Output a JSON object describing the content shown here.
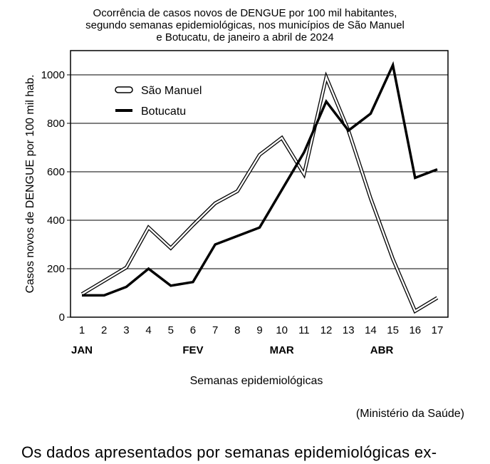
{
  "chart_data": {
    "type": "line",
    "title_lines": [
      "Ocorrência de casos novos de DENGUE por 100 mil habitantes,",
      "segundo semanas epidemiológicas, nos municípios de São Manuel",
      "e Botucatu, de janeiro a abril de 2024"
    ],
    "xlabel": "Semanas epidemiológicas",
    "ylabel": "Casos novos de DENGUE por 100 mil hab.",
    "x": [
      1,
      2,
      3,
      4,
      5,
      6,
      7,
      8,
      9,
      10,
      11,
      12,
      13,
      14,
      15,
      16,
      17
    ],
    "month_labels": [
      {
        "label": "JAN",
        "week": 1
      },
      {
        "label": "FEV",
        "week": 6
      },
      {
        "label": "MAR",
        "week": 10
      },
      {
        "label": "ABR",
        "week": 14.5
      }
    ],
    "yticks": [
      0,
      200,
      400,
      600,
      800,
      1000
    ],
    "ylim": [
      0,
      1100
    ],
    "grid": "horizontal",
    "legend_position": "top-left",
    "series": [
      {
        "name": "São Manuel",
        "style": "outline",
        "values": [
          95,
          150,
          205,
          370,
          285,
          380,
          470,
          520,
          670,
          740,
          590,
          990,
          770,
          490,
          240,
          25,
          80
        ]
      },
      {
        "name": "Botucatu",
        "style": "bold",
        "values": [
          90,
          90,
          125,
          200,
          130,
          145,
          300,
          335,
          370,
          525,
          680,
          890,
          770,
          840,
          1040,
          575,
          610
        ]
      }
    ]
  },
  "source": "(Ministério da Saúde)",
  "body_text": "Os dados apresentados por semanas epidemiológicas ex-"
}
